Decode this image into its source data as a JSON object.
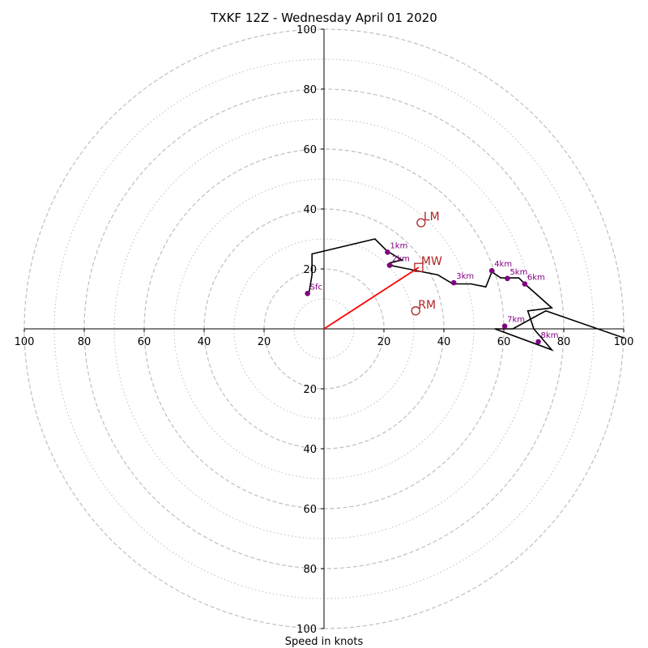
{
  "chart_data": {
    "type": "hodograph",
    "title": "TXKF 12Z - Wednesday April 01 2020",
    "xlabel": "Speed in knots",
    "ring_max": 100,
    "major_rings": [
      20,
      40,
      60,
      80,
      100
    ],
    "minor_rings": [
      10,
      30,
      50,
      70,
      90
    ],
    "tick_labels": {
      "x_left": [
        "100",
        "80",
        "60",
        "40",
        "20"
      ],
      "x_right": [
        "20",
        "40",
        "60",
        "80",
        "100"
      ],
      "y_up": [
        "20",
        "40",
        "60",
        "80",
        "100"
      ],
      "y_down": [
        "20",
        "40",
        "60",
        "80",
        "100"
      ]
    },
    "profile": [
      [
        -5,
        12
      ],
      [
        -4,
        18
      ],
      [
        -4,
        25
      ],
      [
        17,
        30
      ],
      [
        20,
        27
      ],
      [
        21,
        26
      ],
      [
        26,
        23
      ],
      [
        22,
        22
      ],
      [
        23,
        21
      ],
      [
        28,
        20
      ],
      [
        38,
        18
      ],
      [
        43,
        15
      ],
      [
        49,
        15
      ],
      [
        54,
        14
      ],
      [
        56,
        19
      ],
      [
        59,
        17
      ],
      [
        61,
        17
      ],
      [
        65,
        17
      ],
      [
        67,
        15
      ],
      [
        76,
        7
      ],
      [
        68,
        6
      ],
      [
        70,
        0
      ],
      [
        76,
        -7
      ],
      [
        57,
        0
      ],
      [
        63,
        0
      ],
      [
        74,
        6
      ],
      [
        100,
        -3
      ]
    ],
    "height_markers": [
      {
        "label": "Sfc",
        "u": -5.5,
        "v": 11.8
      },
      {
        "label": "1km",
        "u": 21.2,
        "v": 25.6
      },
      {
        "label": "2km",
        "u": 21.9,
        "v": 21.2
      },
      {
        "label": "3km",
        "u": 43.3,
        "v": 15.4
      },
      {
        "label": "4km",
        "u": 56.0,
        "v": 19.4
      },
      {
        "label": "5km",
        "u": 61.2,
        "v": 16.8
      },
      {
        "label": "6km",
        "u": 67.0,
        "v": 15.0
      },
      {
        "label": "7km",
        "u": 60.3,
        "v": 0.9
      },
      {
        "label": "8km",
        "u": 71.5,
        "v": -4.3
      }
    ],
    "storm_motion": [
      {
        "label": "LM",
        "u": 32.4,
        "v": 35.4,
        "marker": "circle"
      },
      {
        "label": "MW",
        "u": 31.6,
        "v": 20.5,
        "marker": "square"
      },
      {
        "label": "RM",
        "u": 30.6,
        "v": 6.0,
        "marker": "circle"
      }
    ],
    "mean_wind_vector": {
      "u": 31.6,
      "v": 20.5
    },
    "colors": {
      "profile": "#000000",
      "markers": "#800080",
      "storm_motion": "#b22222",
      "vector": "#ff0000",
      "grid": "#bfbfbf"
    }
  }
}
